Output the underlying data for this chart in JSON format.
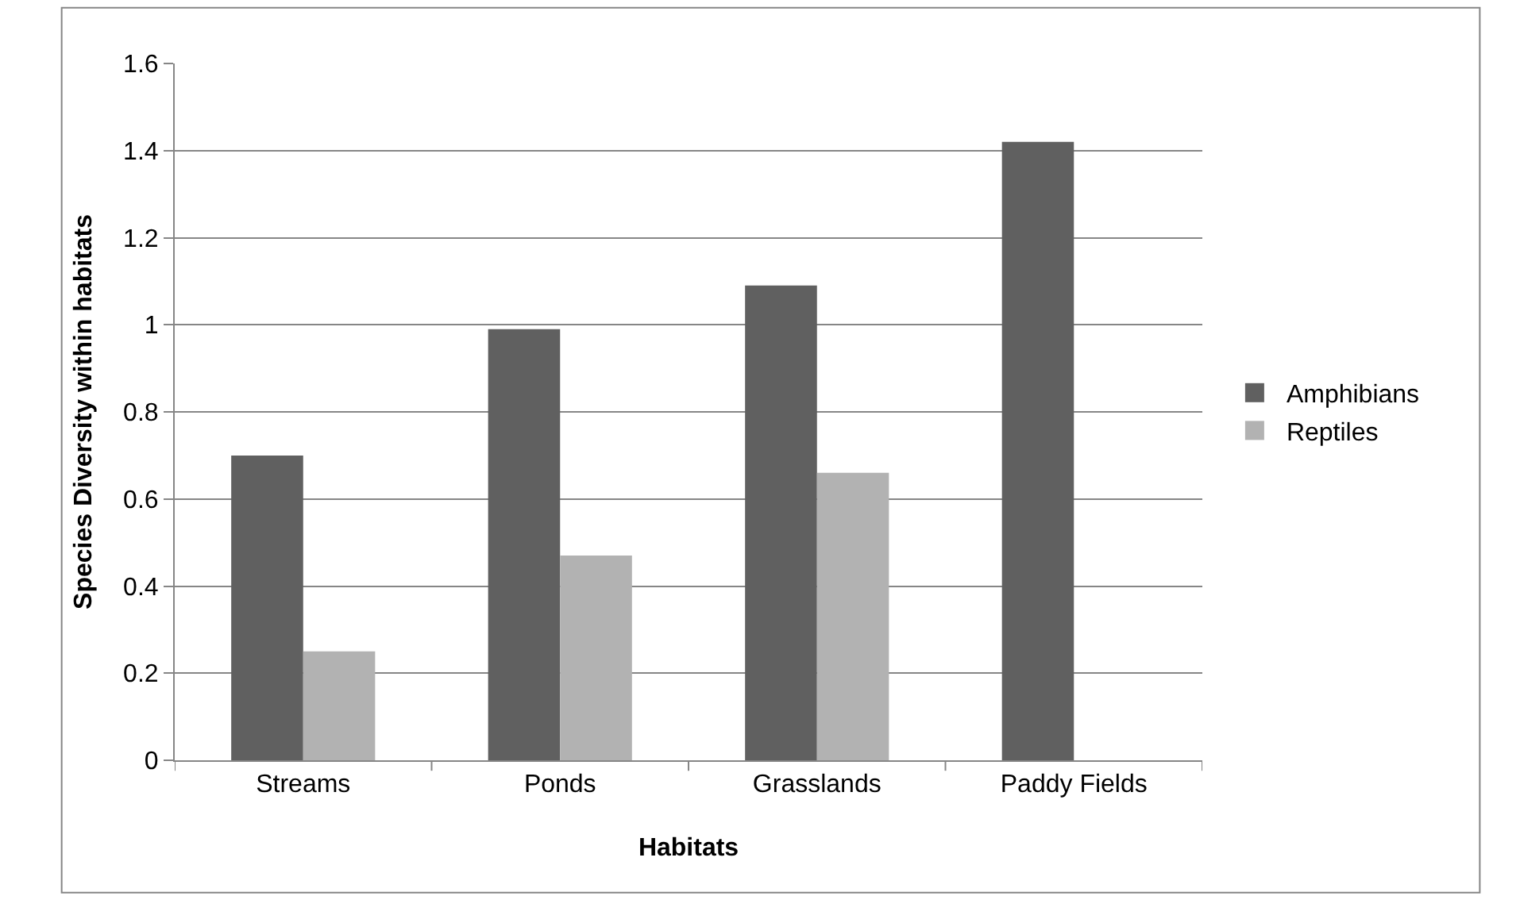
{
  "chart_data": {
    "type": "bar",
    "xlabel": "Habitats",
    "ylabel": "Species Diversity within habitats",
    "categories": [
      "Streams",
      "Ponds",
      "Grasslands",
      "Paddy Fields"
    ],
    "series": [
      {
        "name": "Amphibians",
        "color": "#606060",
        "values": [
          0.7,
          0.99,
          1.09,
          1.42
        ]
      },
      {
        "name": "Reptiles",
        "color": "#b2b2b2",
        "values": [
          0.25,
          0.47,
          0.66,
          null
        ]
      }
    ],
    "ylim": [
      0,
      1.6
    ],
    "yticks": [
      0,
      0.2,
      0.4,
      0.6,
      0.8,
      1,
      1.2,
      1.4,
      1.6
    ],
    "grid": "y",
    "legend": "right"
  }
}
